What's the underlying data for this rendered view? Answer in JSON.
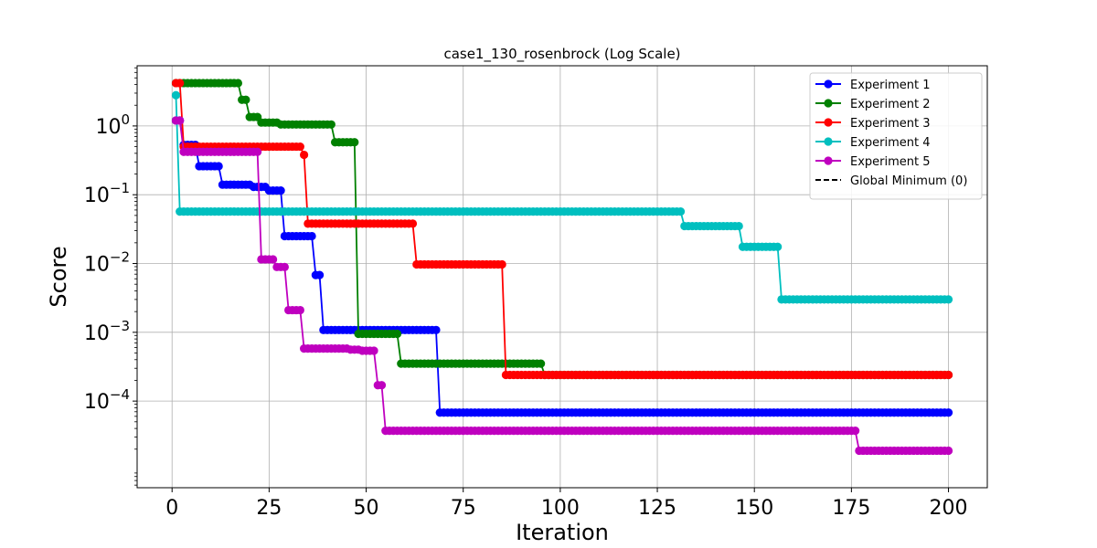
{
  "chart_data": {
    "type": "line",
    "title": "case1_130_rosenbrock (Log Scale)",
    "xlabel": "Iteration",
    "ylabel": "Score",
    "yscale": "log",
    "xlim": [
      -9,
      210
    ],
    "ylim": [
      5.5e-06,
      7.5
    ],
    "grid": true,
    "legend_position": "top-right",
    "x_ticks": [
      {
        "value": 0,
        "label": "0"
      },
      {
        "value": 25,
        "label": "25"
      },
      {
        "value": 50,
        "label": "50"
      },
      {
        "value": 75,
        "label": "75"
      },
      {
        "value": 100,
        "label": "100"
      },
      {
        "value": 125,
        "label": "125"
      },
      {
        "value": 150,
        "label": "150"
      },
      {
        "value": 175,
        "label": "175"
      },
      {
        "value": 200,
        "label": "200"
      }
    ],
    "y_ticks": [
      {
        "value": 1,
        "base": "10",
        "exp": "0"
      },
      {
        "value": 0.1,
        "base": "10",
        "exp": "−1"
      },
      {
        "value": 0.01,
        "base": "10",
        "exp": "−2"
      },
      {
        "value": 0.001,
        "base": "10",
        "exp": "−3"
      },
      {
        "value": 0.0001,
        "base": "10",
        "exp": "−4"
      }
    ],
    "series": [
      {
        "name": "Experiment 1",
        "color": "#0000ff",
        "steps": [
          [
            1,
            1.2
          ],
          [
            3,
            0.53
          ],
          [
            7,
            0.26
          ],
          [
            13,
            0.14
          ],
          [
            21,
            0.13
          ],
          [
            25,
            0.115
          ],
          [
            29,
            0.025
          ],
          [
            37,
            0.0068
          ],
          [
            39,
            0.00108
          ],
          [
            69,
            6.8e-05
          ],
          [
            200,
            6.8e-05
          ]
        ]
      },
      {
        "name": "Experiment 2",
        "color": "#008000",
        "steps": [
          [
            1,
            4.2
          ],
          [
            18,
            2.4
          ],
          [
            20,
            1.35
          ],
          [
            23,
            1.12
          ],
          [
            28,
            1.05
          ],
          [
            42,
            0.58
          ],
          [
            48,
            0.00095
          ],
          [
            59,
            0.00035
          ],
          [
            95,
            0.00035
          ],
          [
            96,
            0.00024
          ],
          [
            200,
            0.00024
          ]
        ]
      },
      {
        "name": "Experiment 3",
        "color": "#ff0000",
        "steps": [
          [
            1,
            4.2
          ],
          [
            3,
            0.5
          ],
          [
            34,
            0.38
          ],
          [
            35,
            0.038
          ],
          [
            63,
            0.0097
          ],
          [
            86,
            0.00024
          ],
          [
            200,
            0.00024
          ]
        ]
      },
      {
        "name": "Experiment 4",
        "color": "#00bfbf",
        "steps": [
          [
            1,
            2.8
          ],
          [
            2,
            0.057
          ],
          [
            132,
            0.035
          ],
          [
            147,
            0.0175
          ],
          [
            157,
            0.003
          ],
          [
            200,
            0.003
          ]
        ]
      },
      {
        "name": "Experiment 5",
        "color": "#bf00bf",
        "steps": [
          [
            1,
            1.2
          ],
          [
            3,
            0.42
          ],
          [
            23,
            0.0115
          ],
          [
            27,
            0.0089
          ],
          [
            30,
            0.0021
          ],
          [
            34,
            0.00058
          ],
          [
            46,
            0.00056
          ],
          [
            49,
            0.00054
          ],
          [
            53,
            0.00017
          ],
          [
            55,
            3.7e-05
          ],
          [
            177,
            1.9e-05
          ],
          [
            200,
            1.9e-05
          ]
        ]
      },
      {
        "name": "Global Minimum (0)",
        "color": "#000000",
        "dashed": true,
        "steps": []
      }
    ]
  }
}
